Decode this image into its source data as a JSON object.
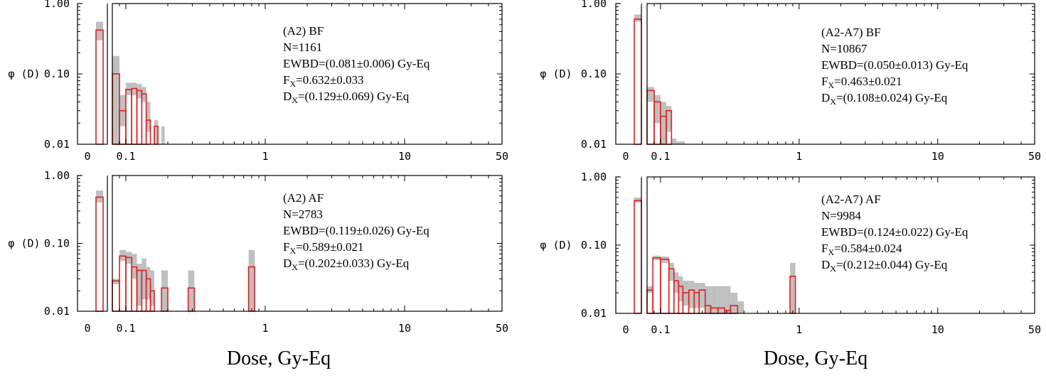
{
  "figure": {
    "xlabels": [
      "Dose, Gy-Eq",
      "Dose, Gy-Eq"
    ],
    "colors": {
      "histogram": "#e02020",
      "uncertainty": "#c0c0c0",
      "axis": "#000000"
    }
  },
  "chart_data": [
    {
      "type": "histogram",
      "title": "(A2) BF",
      "annotation": [
        "N=1161",
        "EWBD=(0.081±0.006) Gy-Eq",
        "F_X=0.632±0.033",
        "D_X=(0.129±0.069) Gy-Eq"
      ],
      "ylabel": "φ (D)",
      "yscale": "log",
      "ylim": [
        0.01,
        1.0
      ],
      "yticks": [
        "1.00",
        "0.10",
        "0.01"
      ],
      "xscale": "log",
      "xlim": [
        0.08,
        50
      ],
      "xticks": [
        "0",
        "0.1",
        "1",
        "10",
        "50"
      ],
      "zero_bin": {
        "value": 0.42,
        "low": 0.3,
        "high": 0.55
      },
      "bins": [
        {
          "x0": 0.08,
          "x1": 0.09,
          "value": 0.1,
          "low": 0.01,
          "high": 0.18
        },
        {
          "x0": 0.09,
          "x1": 0.1,
          "value": 0.03,
          "low": 0.018,
          "high": 0.05
        },
        {
          "x0": 0.1,
          "x1": 0.11,
          "value": 0.06,
          "low": 0.05,
          "high": 0.075
        },
        {
          "x0": 0.11,
          "x1": 0.12,
          "value": 0.062,
          "low": 0.05,
          "high": 0.075
        },
        {
          "x0": 0.12,
          "x1": 0.13,
          "value": 0.058,
          "low": 0.045,
          "high": 0.072
        },
        {
          "x0": 0.13,
          "x1": 0.14,
          "value": 0.052,
          "low": 0.04,
          "high": 0.065
        },
        {
          "x0": 0.14,
          "x1": 0.15,
          "value": 0.022,
          "low": 0.015,
          "high": 0.04
        },
        {
          "x0": 0.15,
          "x1": 0.16,
          "value": 0.0,
          "low": 0.0,
          "high": 0.0
        },
        {
          "x0": 0.16,
          "x1": 0.17,
          "value": 0.018,
          "low": 0.01,
          "high": 0.022
        },
        {
          "x0": 0.17,
          "x1": 0.18,
          "value": 0.0,
          "low": 0.0,
          "high": 0.0
        },
        {
          "x0": 0.18,
          "x1": 0.19,
          "value": 0.0,
          "low": 0.01,
          "high": 0.018
        }
      ]
    },
    {
      "type": "histogram",
      "title": "(A2-A7) BF",
      "annotation": [
        "N=10867",
        "EWBD=(0.050±0.013) Gy-Eq",
        "F_X=0.463±0.021",
        "D_X=(0.108±0.024) Gy-Eq"
      ],
      "ylabel": "φ (D)",
      "yscale": "log",
      "ylim": [
        0.01,
        1.0
      ],
      "yticks": [
        "1.00",
        "0.10",
        "0.01"
      ],
      "xscale": "log",
      "xlim": [
        0.08,
        50
      ],
      "xticks": [
        "0",
        "0.1",
        "1",
        "10",
        "50"
      ],
      "zero_bin": {
        "value": 0.6,
        "low": 0.55,
        "high": 0.7
      },
      "bins": [
        {
          "x0": 0.08,
          "x1": 0.09,
          "value": 0.058,
          "low": 0.04,
          "high": 0.065
        },
        {
          "x0": 0.09,
          "x1": 0.1,
          "value": 0.04,
          "low": 0.02,
          "high": 0.05
        },
        {
          "x0": 0.1,
          "x1": 0.11,
          "value": 0.025,
          "low": 0.01,
          "high": 0.04
        },
        {
          "x0": 0.11,
          "x1": 0.12,
          "value": 0.03,
          "low": 0.015,
          "high": 0.035
        },
        {
          "x0": 0.12,
          "x1": 0.13,
          "value": 0.0,
          "low": 0.0,
          "high": 0.012
        },
        {
          "x0": 0.13,
          "x1": 0.14,
          "value": 0.0,
          "low": 0.0,
          "high": 0.011
        },
        {
          "x0": 0.14,
          "x1": 0.15,
          "value": 0.0,
          "low": 0.0,
          "high": 0.011
        }
      ]
    },
    {
      "type": "histogram",
      "title": "(A2) AF",
      "annotation": [
        "N=2783",
        "EWBD=(0.119±0.026) Gy-Eq",
        "F_X=0.589±0.021",
        "D_X=(0.202±0.033) Gy-Eq"
      ],
      "ylabel": "φ (D)",
      "yscale": "log",
      "ylim": [
        0.01,
        1.0
      ],
      "yticks": [
        "1.00",
        "0.10",
        "0.01"
      ],
      "xscale": "log",
      "xlim": [
        0.08,
        50
      ],
      "xticks": [
        "0",
        "0.1",
        "1",
        "10",
        "50"
      ],
      "zero_bin": {
        "value": 0.48,
        "low": 0.4,
        "high": 0.6
      },
      "bins": [
        {
          "x0": 0.08,
          "x1": 0.09,
          "value": 0.028,
          "low": 0.025,
          "high": 0.03
        },
        {
          "x0": 0.09,
          "x1": 0.1,
          "value": 0.065,
          "low": 0.055,
          "high": 0.08
        },
        {
          "x0": 0.1,
          "x1": 0.11,
          "value": 0.062,
          "low": 0.05,
          "high": 0.075
        },
        {
          "x0": 0.11,
          "x1": 0.12,
          "value": 0.045,
          "low": 0.03,
          "high": 0.07
        },
        {
          "x0": 0.12,
          "x1": 0.13,
          "value": 0.04,
          "low": 0.012,
          "high": 0.05
        },
        {
          "x0": 0.13,
          "x1": 0.14,
          "value": 0.04,
          "low": 0.015,
          "high": 0.06
        },
        {
          "x0": 0.14,
          "x1": 0.15,
          "value": 0.03,
          "low": 0.015,
          "high": 0.045
        },
        {
          "x0": 0.15,
          "x1": 0.16,
          "value": 0.02,
          "low": 0.012,
          "high": 0.04
        },
        {
          "x0": 0.18,
          "x1": 0.2,
          "value": 0.022,
          "low": 0.01,
          "high": 0.04
        },
        {
          "x0": 0.28,
          "x1": 0.31,
          "value": 0.022,
          "low": 0.01,
          "high": 0.04
        },
        {
          "x0": 0.76,
          "x1": 0.84,
          "value": 0.045,
          "low": 0.01,
          "high": 0.08
        }
      ]
    },
    {
      "type": "histogram",
      "title": "(A2-A7) AF",
      "annotation": [
        "N=9984",
        "EWBD=(0.124±0.022) Gy-Eq",
        "F_X=0.584±0.024",
        "D_X=(0.212±0.044) Gy-Eq"
      ],
      "ylabel": "φ (D)",
      "yscale": "log",
      "ylim": [
        0.01,
        1.0
      ],
      "yticks": [
        "1.00",
        "0.10",
        "0.01"
      ],
      "xscale": "log",
      "xlim": [
        0.08,
        50
      ],
      "xticks": [
        "0",
        "0.1",
        "1",
        "10",
        "50"
      ],
      "zero_bin": {
        "value": 0.45,
        "low": 0.42,
        "high": 0.5
      },
      "bins": [
        {
          "x0": 0.08,
          "x1": 0.088,
          "value": 0.022,
          "low": 0.02,
          "high": 0.025
        },
        {
          "x0": 0.088,
          "x1": 0.1,
          "value": 0.065,
          "low": 0.06,
          "high": 0.07
        },
        {
          "x0": 0.1,
          "x1": 0.115,
          "value": 0.062,
          "low": 0.055,
          "high": 0.068
        },
        {
          "x0": 0.115,
          "x1": 0.125,
          "value": 0.045,
          "low": 0.03,
          "high": 0.055
        },
        {
          "x0": 0.125,
          "x1": 0.135,
          "value": 0.03,
          "low": 0.02,
          "high": 0.04
        },
        {
          "x0": 0.135,
          "x1": 0.145,
          "value": 0.025,
          "low": 0.015,
          "high": 0.035
        },
        {
          "x0": 0.145,
          "x1": 0.16,
          "value": 0.02,
          "low": 0.013,
          "high": 0.03
        },
        {
          "x0": 0.16,
          "x1": 0.175,
          "value": 0.022,
          "low": 0.012,
          "high": 0.03
        },
        {
          "x0": 0.175,
          "x1": 0.19,
          "value": 0.02,
          "low": 0.012,
          "high": 0.028
        },
        {
          "x0": 0.19,
          "x1": 0.21,
          "value": 0.022,
          "low": 0.012,
          "high": 0.028
        },
        {
          "x0": 0.21,
          "x1": 0.23,
          "value": 0.013,
          "low": 0.01,
          "high": 0.025
        },
        {
          "x0": 0.23,
          "x1": 0.26,
          "value": 0.012,
          "low": 0.01,
          "high": 0.025
        },
        {
          "x0": 0.26,
          "x1": 0.29,
          "value": 0.012,
          "low": 0.01,
          "high": 0.025
        },
        {
          "x0": 0.29,
          "x1": 0.32,
          "value": 0.011,
          "low": 0.01,
          "high": 0.025
        },
        {
          "x0": 0.32,
          "x1": 0.36,
          "value": 0.013,
          "low": 0.01,
          "high": 0.02
        },
        {
          "x0": 0.36,
          "x1": 0.4,
          "value": 0.0,
          "low": 0.01,
          "high": 0.015
        },
        {
          "x0": 0.86,
          "x1": 0.94,
          "value": 0.035,
          "low": 0.01,
          "high": 0.055
        }
      ]
    }
  ]
}
